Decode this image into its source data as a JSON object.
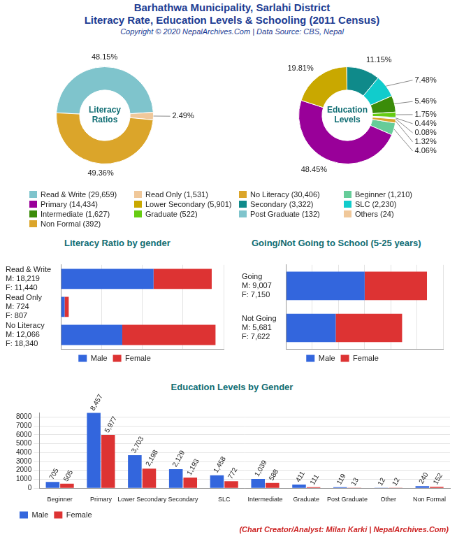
{
  "header": {
    "title": [
      "Barhathwa Municipality, Sarlahi District",
      "Literacy Rate, Education Levels & Schooling (2011 Census)"
    ],
    "copyright": "Copyright © 2020 NepalArchives.Com | Data Source: CBS, Nepal"
  },
  "footer": "(Chart Creator/Analyst: Milan Karki | NepalArchives.Com)",
  "chart_data": [
    {
      "type": "doughnut",
      "title": "Literacy Ratios",
      "categories": [
        "Read & Write (29,659)",
        "Read Only (1,531)",
        "No Literacy (30,406)"
      ],
      "values": [
        48.15,
        2.49,
        49.36
      ],
      "value_labels": [
        "48.15%",
        "2.49%",
        "49.36%"
      ],
      "colors": [
        "#7fc4cc",
        "#f0c89a",
        "#dba52a"
      ],
      "data_labels": true,
      "legend": "bottom"
    },
    {
      "type": "doughnut",
      "title": "Education Levels",
      "categories": [
        "Beginner (1,210)",
        "Primary (14,434)",
        "Lower Secondary (5,901)",
        "Secondary (3,322)",
        "SLC (2,230)",
        "Intermediate (1,627)",
        "Graduate (522)",
        "Post Graduate (132)",
        "Others (24)",
        "Non Formal (392)"
      ],
      "values": [
        4.06,
        48.45,
        19.81,
        11.15,
        7.48,
        5.46,
        1.75,
        0.44,
        0.08,
        1.32
      ],
      "value_labels": [
        "4.06%",
        "48.45%",
        "19.81%",
        "11.15%",
        "7.48%",
        "5.46%",
        "1.75%",
        "0.44%",
        "0.08%",
        "1.32%"
      ],
      "colors": [
        "#66cc99",
        "#990099",
        "#c9a800",
        "#0f8a8a",
        "#11cccc",
        "#3b8c09",
        "#66cc11",
        "#7fc4cc",
        "#f0c89a",
        "#dba52a"
      ],
      "data_labels": true,
      "legend": "bottom"
    },
    {
      "type": "bar",
      "title": "Literacy Ratio by gender",
      "orientation": "horizontal",
      "stacked": true,
      "categories": [
        "Read & Write",
        "Read Only",
        "No Literacy"
      ],
      "series": [
        {
          "name": "Male",
          "color": "#3366dd",
          "values": [
            18219,
            724,
            12066
          ],
          "value_labels": [
            "M: 18,219",
            "M: 724",
            "M: 12,066"
          ]
        },
        {
          "name": "Female",
          "color": "#dd3333",
          "values": [
            11440,
            807,
            18340
          ],
          "value_labels": [
            "F: 11,440",
            "F: 807",
            "F: 18,340"
          ]
        }
      ],
      "xlim": [
        0,
        32000
      ],
      "xticks": [
        0,
        8000,
        16000,
        24000,
        32000
      ],
      "tick_labels": "y",
      "grid": true,
      "legend": "bottom"
    },
    {
      "type": "bar",
      "title": "Going/Not Going to School (5-25 years)",
      "orientation": "horizontal",
      "stacked": true,
      "categories": [
        "Going",
        "Not Going"
      ],
      "series": [
        {
          "name": "Male",
          "color": "#3366dd",
          "values": [
            9007,
            5681
          ],
          "value_labels": [
            "M: 9,007",
            "M: 5,681"
          ]
        },
        {
          "name": "Female",
          "color": "#dd3333",
          "values": [
            7150,
            7622
          ],
          "value_labels": [
            "F: 7,150",
            "F: 7,622"
          ]
        }
      ],
      "xlim": [
        0,
        18000
      ],
      "xticks": [
        0,
        3000,
        6000,
        9000,
        12000,
        15000,
        18000
      ],
      "tick_labels": "y",
      "grid": true,
      "legend": "bottom"
    },
    {
      "type": "bar",
      "title": "Education Levels by Gender",
      "categories": [
        "Beginner",
        "Primary",
        "Lower Secondary",
        "Secondary",
        "SLC",
        "Intermediate",
        "Graduate",
        "Post Graduate",
        "Other",
        "Non Formal"
      ],
      "series": [
        {
          "name": "Male",
          "color": "#3366dd",
          "values": [
            705,
            8457,
            3703,
            2129,
            1458,
            1039,
            411,
            119,
            12,
            240
          ],
          "value_labels": [
            "705",
            "8,457",
            "3,703",
            "2,129",
            "1,458",
            "1,039",
            "411",
            "119",
            "12",
            "240"
          ]
        },
        {
          "name": "Female",
          "color": "#dd3333",
          "values": [
            505,
            5977,
            2198,
            1193,
            772,
            588,
            111,
            13,
            12,
            152
          ],
          "value_labels": [
            "505",
            "5,977",
            "2,198",
            "1,193",
            "772",
            "588",
            "111",
            "13",
            "12",
            "152"
          ]
        }
      ],
      "ylim": [
        0,
        8500
      ],
      "yticks": [
        0,
        1000,
        2000,
        3000,
        4000,
        5000,
        6000,
        7000,
        8000
      ],
      "grid": true,
      "data_labels": true,
      "legend": "bottom"
    }
  ]
}
